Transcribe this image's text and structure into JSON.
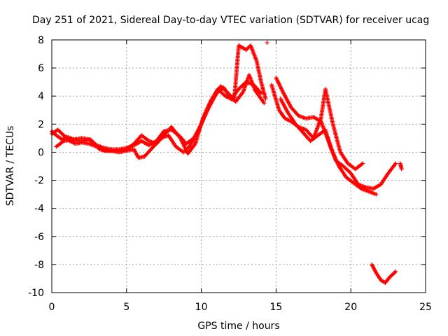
{
  "chart_data": {
    "type": "scatter",
    "title": "Day 251 of 2021, Sidereal Day-to-day VTEC variation (SDTVAR) for receiver ucag",
    "xlabel": "GPS time / hours",
    "ylabel": "SDTVAR / TECUs",
    "xlim": [
      0,
      25
    ],
    "ylim": [
      -10,
      8
    ],
    "xticks": [
      0,
      5,
      10,
      15,
      20,
      25
    ],
    "yticks": [
      -10,
      -8,
      -6,
      -4,
      -2,
      0,
      2,
      4,
      6,
      8
    ],
    "grid": true,
    "marker": "+",
    "series": [
      {
        "name": "track 1",
        "color": "#ff0000",
        "points": [
          [
            0,
            1.5
          ],
          [
            0.3,
            1.2
          ],
          [
            0.7,
            0.9
          ],
          [
            1,
            1.1
          ],
          [
            1.5,
            0.9
          ],
          [
            2,
            0.8
          ],
          [
            2.5,
            0.9
          ],
          [
            3,
            0.5
          ],
          [
            3.5,
            0.3
          ],
          [
            4,
            0.2
          ],
          [
            4.5,
            0.2
          ],
          [
            5,
            0.3
          ],
          [
            5.5,
            0.5
          ],
          [
            6,
            0.8
          ],
          [
            6.5,
            0.5
          ],
          [
            7,
            0.8
          ],
          [
            7.5,
            1.5
          ],
          [
            8,
            1.6
          ],
          [
            8.5,
            1.2
          ],
          [
            9,
            0.6
          ],
          [
            9.5,
            1.0
          ],
          [
            10,
            2.0
          ],
          [
            10.5,
            3.2
          ],
          [
            11,
            4.2
          ],
          [
            11.5,
            4.6
          ],
          [
            12,
            3.8
          ],
          [
            12.5,
            4.5
          ],
          [
            13,
            5.0
          ],
          [
            13.5,
            4.8
          ],
          [
            14,
            4.2
          ]
        ]
      },
      {
        "name": "track 2",
        "color": "#ff0000",
        "points": [
          [
            0,
            1.3
          ],
          [
            0.4,
            1.6
          ],
          [
            0.8,
            1.2
          ],
          [
            1.2,
            0.8
          ],
          [
            1.6,
            0.6
          ],
          [
            2,
            0.7
          ],
          [
            2.5,
            0.6
          ],
          [
            3,
            0.4
          ],
          [
            3.5,
            0.1
          ],
          [
            4,
            0.1
          ],
          [
            4.5,
            0.0
          ],
          [
            5,
            0.1
          ],
          [
            5.5,
            0.2
          ],
          [
            5.8,
            -0.4
          ],
          [
            6.2,
            -0.3
          ],
          [
            6.8,
            0.4
          ],
          [
            7.3,
            1.0
          ],
          [
            7.8,
            1.2
          ],
          [
            8.3,
            0.4
          ],
          [
            8.8,
            0.0
          ],
          [
            9.2,
            0.4
          ],
          [
            9.8,
            1.5
          ],
          [
            10.3,
            2.8
          ],
          [
            10.8,
            3.8
          ],
          [
            11.3,
            4.7
          ],
          [
            11.8,
            4.2
          ],
          [
            12.3,
            3.6
          ],
          [
            12.8,
            4.3
          ],
          [
            13.2,
            5.5
          ],
          [
            13.6,
            4.4
          ],
          [
            14.2,
            3.5
          ]
        ]
      },
      {
        "name": "track 3",
        "color": "#ff0000",
        "points": [
          [
            0.3,
            0.4
          ],
          [
            0.8,
            0.8
          ],
          [
            1.4,
            0.9
          ],
          [
            2,
            1.0
          ],
          [
            2.6,
            0.9
          ],
          [
            3.2,
            0.2
          ],
          [
            3.8,
            0.1
          ],
          [
            4.5,
            0.1
          ],
          [
            5,
            0.2
          ],
          [
            5.5,
            0.6
          ],
          [
            6,
            1.2
          ],
          [
            6.5,
            0.8
          ],
          [
            7,
            0.6
          ],
          [
            7.5,
            1.2
          ],
          [
            8,
            1.8
          ],
          [
            8.6,
            1.0
          ],
          [
            9.1,
            -0.1
          ],
          [
            9.6,
            0.6
          ],
          [
            10.1,
            2.4
          ],
          [
            10.6,
            3.6
          ],
          [
            11.1,
            4.5
          ],
          [
            11.6,
            4.0
          ],
          [
            12.2,
            3.7
          ],
          [
            12.5,
            7.6
          ],
          [
            13,
            7.3
          ],
          [
            13.3,
            7.6
          ],
          [
            13.7,
            6.5
          ],
          [
            14,
            5.0
          ],
          [
            14.3,
            3.8
          ]
        ]
      },
      {
        "name": "track 4",
        "color": "#ff0000",
        "points": [
          [
            15,
            5.3
          ],
          [
            15.5,
            4.2
          ],
          [
            16,
            3.2
          ],
          [
            16.5,
            2.6
          ],
          [
            17,
            2.4
          ],
          [
            17.5,
            2.5
          ],
          [
            18,
            2.2
          ],
          [
            18.5,
            0.8
          ],
          [
            19,
            -0.6
          ],
          [
            19.5,
            -1.0
          ],
          [
            20,
            -1.5
          ],
          [
            20.5,
            -2.3
          ],
          [
            21,
            -2.5
          ],
          [
            21.5,
            -2.6
          ],
          [
            22,
            -2.3
          ],
          [
            22.5,
            -1.5
          ],
          [
            23,
            -0.8
          ]
        ]
      },
      {
        "name": "track 5",
        "color": "#ff0000",
        "points": [
          [
            14.7,
            4.8
          ],
          [
            15.2,
            3.0
          ],
          [
            15.6,
            2.4
          ],
          [
            16,
            2.2
          ],
          [
            16.5,
            1.8
          ],
          [
            17,
            1.6
          ],
          [
            17.5,
            1.0
          ],
          [
            18,
            2.4
          ],
          [
            18.3,
            4.5
          ],
          [
            18.8,
            2.0
          ],
          [
            19.3,
            0.0
          ],
          [
            19.8,
            -0.8
          ],
          [
            20.3,
            -1.2
          ],
          [
            20.8,
            -0.8
          ]
        ]
      },
      {
        "name": "track 6",
        "color": "#ff0000",
        "points": [
          [
            15.3,
            3.8
          ],
          [
            15.8,
            2.8
          ],
          [
            16.3,
            2.0
          ],
          [
            16.8,
            1.4
          ],
          [
            17.3,
            0.8
          ],
          [
            17.8,
            1.2
          ],
          [
            18.3,
            1.6
          ],
          [
            18.7,
            0.2
          ],
          [
            19.2,
            -1.0
          ],
          [
            19.7,
            -1.8
          ],
          [
            20.2,
            -2.2
          ],
          [
            20.7,
            -2.6
          ],
          [
            21.2,
            -2.8
          ],
          [
            21.7,
            -3.0
          ]
        ]
      },
      {
        "name": "track 7",
        "color": "#ff0000",
        "points": [
          [
            21.4,
            -8.0
          ],
          [
            21.7,
            -8.6
          ],
          [
            22,
            -9.1
          ],
          [
            22.3,
            -9.3
          ],
          [
            22.6,
            -8.9
          ],
          [
            23,
            -8.5
          ]
        ]
      },
      {
        "name": "track 8",
        "color": "#ff0000",
        "points": [
          [
            23.3,
            -0.8
          ],
          [
            23.4,
            -1.2
          ]
        ]
      }
    ],
    "outliers": [
      [
        14.4,
        7.8
      ]
    ]
  }
}
